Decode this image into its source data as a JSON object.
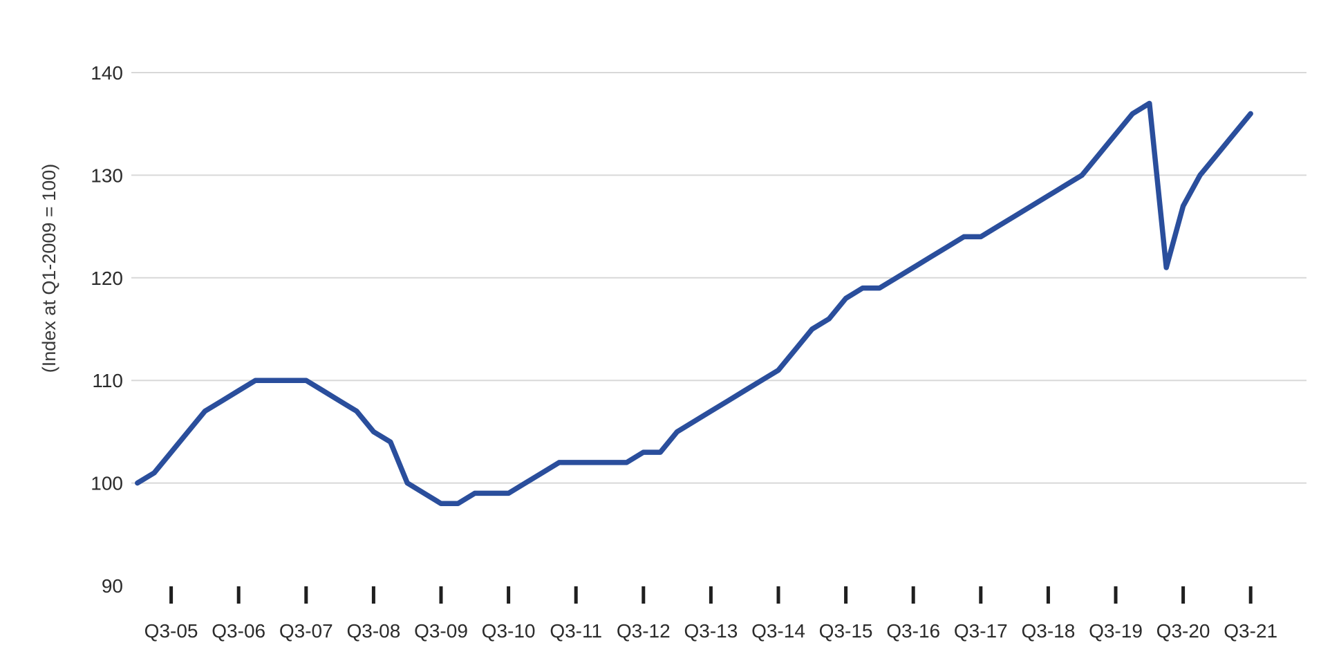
{
  "chart_data": {
    "type": "line",
    "title": "",
    "subtitle": "",
    "xlabel": "",
    "ylabel": "(Index at Q1-2009 = 100)",
    "frequency": "quarterly",
    "start_quarter": "Q1-2005",
    "end_quarter": "Q3-2021",
    "x_tick_labels": [
      "Q3-05",
      "Q3-06",
      "Q3-07",
      "Q3-08",
      "Q3-09",
      "Q3-10",
      "Q3-11",
      "Q3-12",
      "Q3-13",
      "Q3-14",
      "Q3-15",
      "Q3-16",
      "Q3-17",
      "Q3-18",
      "Q3-19",
      "Q3-20",
      "Q3-21"
    ],
    "y_tick_labels": [
      "140",
      "130",
      "120",
      "110",
      "100",
      "90"
    ],
    "y_ticks": [
      140,
      130,
      120,
      110,
      100,
      90
    ],
    "y_gridline_values": [
      140,
      130,
      120,
      110,
      100
    ],
    "ylim": [
      90,
      142.5
    ],
    "grid": "horizontal-only",
    "legend_position": "none",
    "series": [
      {
        "name": "Index (Q1-2009 = 100)",
        "color": "#2a4e9c",
        "values": [
          100,
          101,
          103,
          105,
          107,
          108,
          109,
          110,
          110,
          110,
          110,
          109,
          108,
          107,
          105,
          104,
          100,
          99,
          98,
          98,
          99,
          99,
          99,
          100,
          101,
          102,
          102,
          102,
          102,
          102,
          103,
          103,
          105,
          106,
          107,
          108,
          109,
          110,
          111,
          113,
          115,
          116,
          118,
          119,
          119,
          120,
          121,
          122,
          123,
          124,
          124,
          125,
          126,
          127,
          128,
          129,
          130,
          132,
          134,
          136,
          137,
          121,
          127,
          130,
          132,
          134,
          136
        ]
      }
    ],
    "annotations": []
  },
  "style": {
    "line_color": "#2a4e9c",
    "grid_color": "#d8d8d8",
    "tick_mark_color": "#1f1f1f",
    "label_color": "#2b2b2b",
    "background_color": "#ffffff"
  }
}
